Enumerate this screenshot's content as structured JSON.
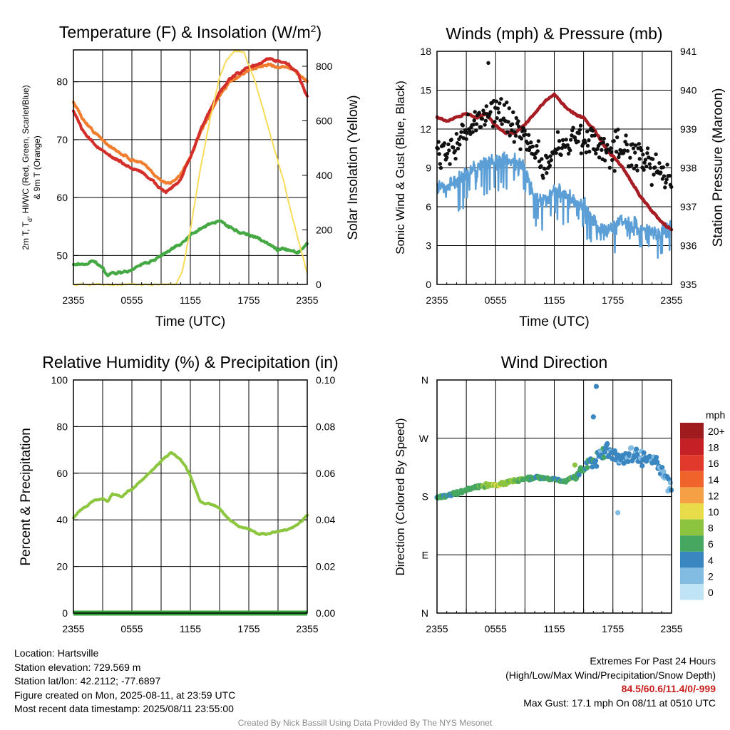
{
  "chart_data": [
    {
      "id": "temp",
      "type": "line",
      "title": "Temperature (F) & Insolation (W/m",
      "title_sup": "2",
      "title_close": ")",
      "xlabel": "Time (UTC)",
      "ylabel_lines": [
        "2m T, T",
        "d",
        ", HI/WC (Red, Green, Scarlet/Blue)",
        "& 9m T (Orange)"
      ],
      "y2label": "Solar Insolation (Yellow)",
      "x_ticks": [
        "2355",
        "0555",
        "1155",
        "1755",
        "2355"
      ],
      "x_range_hours": [
        0,
        24
      ],
      "y_ticks": [
        50,
        60,
        70,
        80
      ],
      "ylim": [
        45,
        85.5
      ],
      "y2_ticks": [
        0,
        200,
        400,
        600,
        800
      ],
      "y2lim": [
        0,
        860
      ],
      "grid": true,
      "series": [
        {
          "color": "#f07e2e",
          "axis": "left",
          "x": [
            0,
            1,
            2,
            3,
            4,
            5,
            6,
            7,
            8,
            9,
            9.5,
            10,
            11,
            12,
            13,
            14,
            15,
            16,
            17,
            18,
            19,
            20,
            21,
            22,
            23,
            24
          ],
          "values": [
            76.5,
            73.5,
            71.5,
            70,
            68.5,
            67.5,
            66.5,
            66,
            64.5,
            63,
            62.5,
            62.5,
            64,
            67,
            71,
            74.5,
            77.5,
            80,
            81,
            82,
            82.5,
            83,
            82.5,
            82.5,
            81.5,
            80
          ]
        },
        {
          "color": "#d42e2a",
          "axis": "left",
          "x": [
            0,
            1,
            2,
            3,
            4,
            5,
            6,
            7,
            8,
            9,
            9.5,
            10,
            11,
            12,
            13,
            14,
            15,
            16,
            17,
            18,
            19,
            20,
            21,
            22,
            23,
            24
          ],
          "values": [
            75,
            71.5,
            69.5,
            68,
            67,
            66,
            65,
            64.5,
            63,
            61.5,
            61,
            61.5,
            63,
            67,
            71.5,
            75,
            78,
            80.5,
            81.5,
            82.5,
            83,
            84,
            83.5,
            83,
            81.5,
            77.5
          ]
        },
        {
          "color": "#44a843",
          "axis": "left",
          "x": [
            0,
            1,
            2,
            3,
            3.5,
            4,
            5,
            6,
            7,
            8,
            9,
            10,
            11,
            12,
            13,
            14,
            15,
            16,
            17,
            18,
            19,
            20,
            21,
            22,
            23,
            24
          ],
          "values": [
            48.5,
            48.5,
            49,
            48,
            46.5,
            47,
            47,
            47.5,
            48.5,
            49,
            50,
            51,
            52,
            53.5,
            54.5,
            55.5,
            56,
            55,
            54,
            53.5,
            53,
            52,
            51,
            51,
            50.5,
            52
          ]
        },
        {
          "color": "#f8dc58",
          "axis": "right",
          "x": [
            0,
            6,
            10.5,
            11.2,
            12,
            13,
            14,
            15,
            15.7,
            16.5,
            17.5,
            18.5,
            19.5,
            20.5,
            21.5,
            22.5,
            23.4,
            24
          ],
          "values": [
            0,
            0,
            0,
            50,
            200,
            420,
            600,
            760,
            825,
            855,
            850,
            760,
            640,
            510,
            390,
            240,
            120,
            40
          ]
        }
      ]
    },
    {
      "id": "winds",
      "type": "line",
      "title": "Winds (mph) & Pressure (mb)",
      "xlabel": "Time (UTC)",
      "ylabel": "Sonic Wind & Gust (Blue, Black)",
      "y2label": "Station Pressure (Maroon)",
      "x_ticks": [
        "2355",
        "0555",
        "1155",
        "1755",
        "2355"
      ],
      "x_range_hours": [
        0,
        24
      ],
      "y_ticks": [
        0,
        3,
        6,
        9,
        12,
        15,
        18
      ],
      "ylim": [
        0,
        18
      ],
      "y2_ticks": [
        935,
        936,
        937,
        938,
        939,
        940,
        941
      ],
      "y2lim": [
        935,
        941
      ],
      "grid": true,
      "wind": {
        "color": "#5b9fd6",
        "x": [
          0,
          1,
          2,
          3,
          4,
          5,
          6,
          7,
          8,
          9,
          10,
          11,
          12,
          13,
          14,
          15,
          16,
          17,
          18,
          19,
          20,
          21,
          22,
          23,
          24
        ],
        "values": [
          7.5,
          7.5,
          8,
          8.5,
          9,
          9.5,
          9.5,
          9.5,
          9.5,
          9,
          6.5,
          6.5,
          7,
          7,
          6.5,
          6,
          5,
          4,
          4.5,
          5,
          4.5,
          4.5,
          4,
          4,
          4.5
        ]
      },
      "gusts": {
        "color": "#111111",
        "center": [
          10.5,
          10,
          11,
          12,
          12.5,
          13,
          14,
          13,
          12,
          11.5,
          10,
          9,
          10,
          11,
          11,
          11.5,
          11,
          10.5,
          10.5,
          10,
          10,
          9.5,
          9,
          8.5,
          8
        ],
        "max_gust": 17.1,
        "max_gust_hour": 5.25
      },
      "pressure": {
        "color": "#a61d24",
        "x": [
          0,
          1,
          2,
          3,
          4,
          5,
          6,
          7,
          8,
          9,
          10,
          11,
          12,
          13,
          14,
          15,
          16,
          17,
          18,
          19,
          20,
          21,
          22,
          23,
          24
        ],
        "values": [
          939.3,
          939.2,
          939.3,
          939.4,
          939.3,
          939.4,
          939.1,
          938.9,
          938.9,
          939.1,
          939.4,
          939.7,
          939.9,
          939.6,
          939.4,
          939.3,
          939.0,
          938.6,
          938.3,
          938.0,
          937.6,
          937.2,
          936.9,
          936.6,
          936.4
        ]
      }
    },
    {
      "id": "rh",
      "type": "line",
      "title": "Relative Humidity (%) & Precipitation (in)",
      "ylabel": "Percent & Precipitation",
      "x_ticks": [
        "2355",
        "0555",
        "1155",
        "1755",
        "2355"
      ],
      "x_range_hours": [
        0,
        24
      ],
      "y_ticks": [
        0,
        20,
        40,
        60,
        80,
        100
      ],
      "ylim": [
        0,
        100
      ],
      "y2_ticks": [
        "0.00",
        "0.02",
        "0.04",
        "0.06",
        "0.08",
        "0.10"
      ],
      "y2lim": [
        0,
        0.1
      ],
      "grid": true,
      "series": [
        {
          "color": "#8cc63f",
          "x": [
            0,
            1,
            2,
            3,
            3.5,
            4,
            5,
            5.5,
            6,
            7,
            8,
            9,
            9.5,
            10,
            11,
            11.5,
            12,
            13,
            13.5,
            14,
            15,
            16,
            17,
            18,
            19,
            20,
            21,
            22,
            23,
            24
          ],
          "values": [
            41,
            45,
            48,
            49,
            48,
            51,
            50,
            52,
            53,
            57,
            61,
            65,
            67,
            69,
            66,
            63,
            59,
            48,
            47,
            47,
            45,
            40,
            37,
            36,
            34,
            34,
            35,
            36,
            38,
            42
          ]
        },
        {
          "color": "#33a23a",
          "x": [
            0,
            24
          ],
          "values": [
            0,
            0
          ]
        }
      ]
    },
    {
      "id": "direction",
      "type": "scatter",
      "title": "Wind Direction",
      "ylabel": "Direction (Colored By Speed)",
      "x_ticks": [
        "2355",
        "0555",
        "1155",
        "1755",
        "2355"
      ],
      "x_range_hours": [
        0,
        24
      ],
      "y_tick_labels": [
        "N",
        "E",
        "S",
        "W",
        "N"
      ],
      "y_tick_degrees": [
        0,
        90,
        180,
        270,
        360
      ],
      "ylim": [
        0,
        360
      ],
      "grid": true,
      "trend_x": [
        0,
        1,
        2,
        3,
        4,
        5,
        6,
        7,
        8,
        9,
        10,
        11,
        12,
        13,
        14,
        15,
        16,
        17,
        18,
        19,
        20,
        21,
        22,
        23,
        24
      ],
      "trend_deg": [
        178,
        182,
        185,
        190,
        195,
        197,
        198,
        201,
        205,
        207,
        210,
        208,
        207,
        203,
        210,
        220,
        235,
        250,
        245,
        240,
        245,
        235,
        240,
        220,
        185
      ],
      "colorbar": {
        "title": "mph",
        "labels": [
          "20+",
          "18",
          "16",
          "14",
          "12",
          "10",
          "8",
          "6",
          "4",
          "2",
          "0"
        ],
        "colors": [
          "#9e1b1e",
          "#c42026",
          "#e13a2d",
          "#f0642c",
          "#f6a045",
          "#e8dc4a",
          "#8cc43f",
          "#45a760",
          "#3a86c0",
          "#82bce2",
          "#bfe4f6"
        ]
      }
    }
  ],
  "footer": {
    "location": "Location: Hartsville",
    "elevation": "Station elevation: 729.569 m",
    "latlon": "Station lat/lon: 42.2112; -77.6897",
    "created": "Figure created on Mon, 2025-08-11, at 23:59 UTC",
    "recent": "Most recent data timestamp: 2025/08/11 23:55:00",
    "extremes_title": "Extremes For Past 24 Hours",
    "extremes_legend": "(High/Low/Max Wind/Precipitation/Snow Depth)",
    "extremes_values": "84.5/60.6/11.4/0/-999",
    "max_gust": "Max Gust: 17.1 mph On 08/11 at 0510 UTC",
    "credit": "Created By Nick Bassill Using Data Provided By The NYS Mesonet"
  }
}
